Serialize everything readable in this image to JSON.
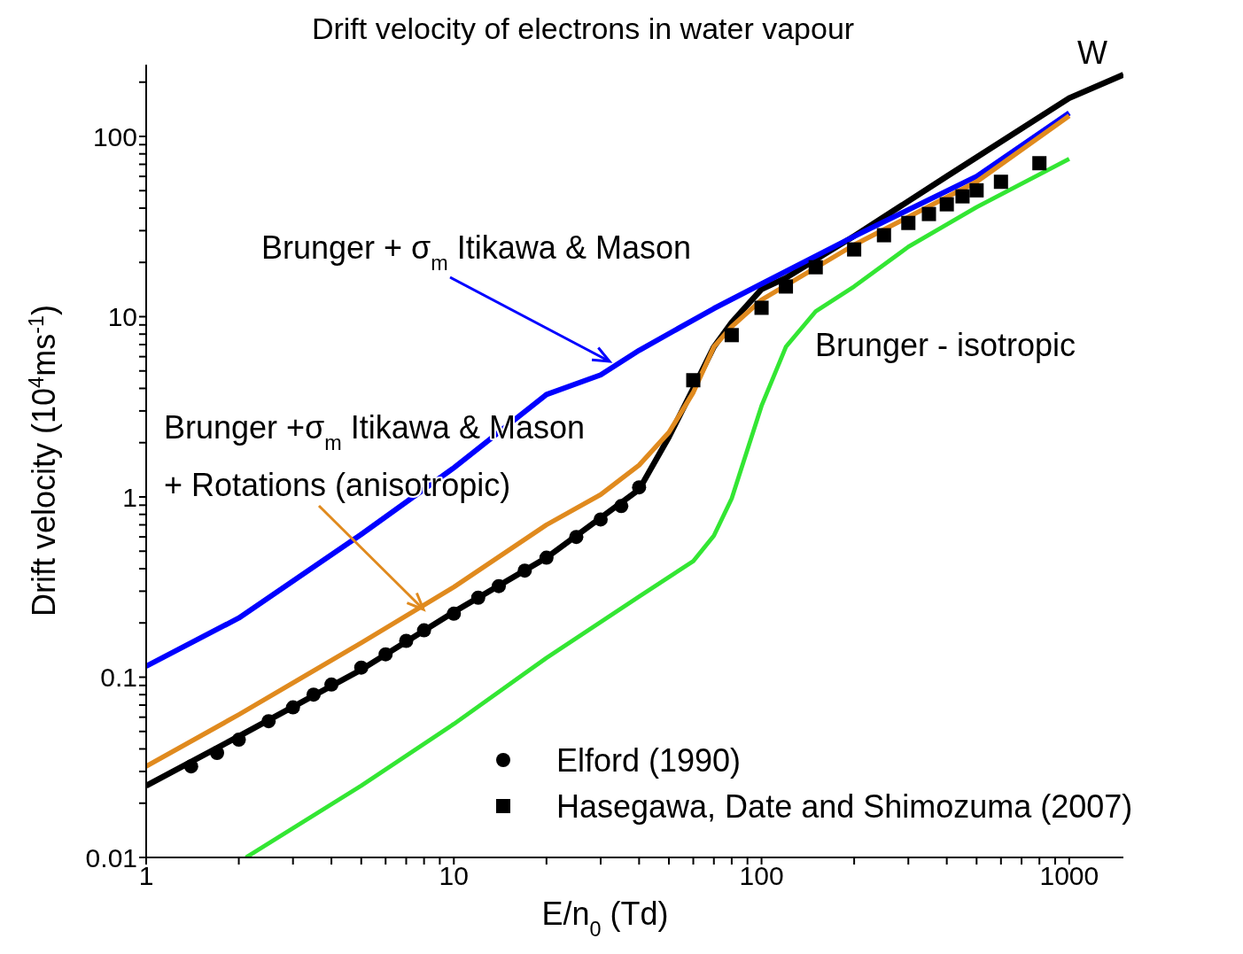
{
  "chart_data": {
    "type": "line",
    "title": "Drift velocity of electrons in water vapour",
    "xlabel": "E/n$_{0}$ (Td)",
    "ylabel": "Drift velocity (10$^{4}$ms$^{-1}$)",
    "log": "xy",
    "legend": "bottom right",
    "xlim": [
      1,
      1500
    ],
    "xticks": [
      1,
      {
        "value": 2,
        "label": null
      },
      {
        "value": 3,
        "label": null
      },
      {
        "value": 4,
        "label": null
      },
      {
        "value": 5,
        "label": null
      },
      {
        "value": 6,
        "label": null
      },
      {
        "value": 7,
        "label": null
      },
      {
        "value": 8,
        "label": null
      },
      {
        "value": 9,
        "label": null
      },
      10,
      {
        "value": 20,
        "label": null
      },
      {
        "value": 30,
        "label": null
      },
      {
        "value": 40,
        "label": null
      },
      {
        "value": 50,
        "label": null
      },
      {
        "value": 60,
        "label": null
      },
      {
        "value": 70,
        "label": null
      },
      {
        "value": 80,
        "label": null
      },
      {
        "value": 90,
        "label": null
      },
      100,
      {
        "value": 200,
        "label": null
      },
      {
        "value": 300,
        "label": null
      },
      {
        "value": 400,
        "label": null
      },
      {
        "value": 500,
        "label": null
      },
      {
        "value": 600,
        "label": null
      },
      {
        "value": 700,
        "label": null
      },
      {
        "value": 800,
        "label": null
      },
      {
        "value": 900,
        "label": null
      },
      1000
    ],
    "ylim": [
      0.01,
      250
    ],
    "yticks": [
      0.01,
      {
        "value": 0.02,
        "label": null
      },
      {
        "value": 0.03,
        "label": null
      },
      {
        "value": 0.04,
        "label": null
      },
      {
        "value": 0.05,
        "label": null
      },
      {
        "value": 0.06,
        "label": null
      },
      {
        "value": 0.07,
        "label": null
      },
      {
        "value": 0.08,
        "label": null
      },
      {
        "value": 0.09,
        "label": null
      },
      0.1,
      {
        "value": 0.2,
        "label": null
      },
      {
        "value": 0.3,
        "label": null
      },
      {
        "value": 0.4,
        "label": null
      },
      {
        "value": 0.5,
        "label": null
      },
      {
        "value": 0.6,
        "label": null
      },
      {
        "value": 0.7,
        "label": null
      },
      {
        "value": 0.8,
        "label": null
      },
      {
        "value": 0.9,
        "label": null
      },
      1,
      {
        "value": 2,
        "label": null
      },
      {
        "value": 3,
        "label": null
      },
      {
        "value": 4,
        "label": null
      },
      {
        "value": 5,
        "label": null
      },
      {
        "value": 6,
        "label": null
      },
      {
        "value": 7,
        "label": null
      },
      {
        "value": 8,
        "label": null
      },
      {
        "value": 9,
        "label": null
      },
      10,
      {
        "value": 20,
        "label": null
      },
      {
        "value": 30,
        "label": null
      },
      {
        "value": 40,
        "label": null
      },
      {
        "value": 50,
        "label": null
      },
      {
        "value": 60,
        "label": null
      },
      {
        "value": 70,
        "label": null
      },
      {
        "value": 80,
        "label": null
      },
      {
        "value": 90,
        "label": null
      },
      100,
      {
        "value": 200,
        "label": null
      }
    ],
    "series": [
      {
        "name": "W",
        "color": "#000000",
        "x": [
          1,
          2,
          5,
          10,
          20,
          40,
          50,
          60,
          70,
          80,
          100,
          120,
          200,
          400,
          1000,
          1500
        ],
        "values": [
          0.025,
          0.047,
          0.11,
          0.23,
          0.46,
          1.1,
          2.15,
          4.0,
          6.8,
          9.3,
          14.2,
          16.4,
          28,
          60,
          163,
          220
        ]
      },
      {
        "name": "Brunger + σ$_{m}$ Itikawa & Mason",
        "color": "#0000ff",
        "x": [
          1,
          2,
          5,
          10,
          20,
          30,
          40,
          70,
          100,
          200,
          500,
          1000
        ],
        "values": [
          0.115,
          0.213,
          0.62,
          1.45,
          3.7,
          4.75,
          6.5,
          11.1,
          15.2,
          27.9,
          60,
          135
        ]
      },
      {
        "name": "Brunger +σ$_{m}$ Itikawa & Mason\n+ Rotations (anisotropic)",
        "color": "#e08a1e",
        "x": [
          1,
          2,
          5,
          10,
          20,
          30,
          40,
          50,
          60,
          70,
          80,
          100,
          200,
          500,
          1000
        ],
        "values": [
          0.032,
          0.062,
          0.155,
          0.316,
          0.7,
          1.03,
          1.5,
          2.28,
          3.8,
          6.8,
          8.8,
          12.4,
          25,
          56,
          130
        ]
      },
      {
        "name": "Brunger - isotropic",
        "color": "#33e633",
        "x": [
          2.11,
          5,
          10,
          20,
          40,
          60,
          70,
          80,
          100,
          120,
          150,
          200,
          300,
          500,
          1000
        ],
        "values": [
          0.01,
          0.025,
          0.055,
          0.128,
          0.28,
          0.44,
          0.61,
          0.98,
          3.2,
          6.8,
          10.7,
          14.7,
          24.4,
          40.5,
          75
        ]
      },
      {
        "name": "Elford (1990)",
        "type": "scatter",
        "marker": "circle",
        "color": "#000000",
        "x": [
          1.4,
          1.7,
          2,
          2.5,
          3,
          3.5,
          4,
          5,
          6,
          7,
          8,
          10,
          12,
          14,
          17,
          20,
          25,
          30,
          35,
          40
        ],
        "values": [
          0.032,
          0.038,
          0.045,
          0.057,
          0.068,
          0.08,
          0.091,
          0.113,
          0.134,
          0.159,
          0.182,
          0.225,
          0.276,
          0.32,
          0.39,
          0.46,
          0.6,
          0.75,
          0.89,
          1.13
        ]
      },
      {
        "name": "Hasegawa, Date  and Shimozuma (2007)",
        "type": "scatter",
        "marker": "square",
        "color": "#000000",
        "x": [
          60,
          80,
          100,
          120,
          150,
          200,
          250,
          300,
          350,
          400,
          450,
          500,
          600,
          800
        ],
        "values": [
          4.44,
          7.9,
          11.2,
          14.7,
          18.8,
          23.6,
          28.3,
          33.1,
          37.1,
          42,
          46.5,
          50.2,
          56,
          71
        ]
      }
    ]
  }
}
